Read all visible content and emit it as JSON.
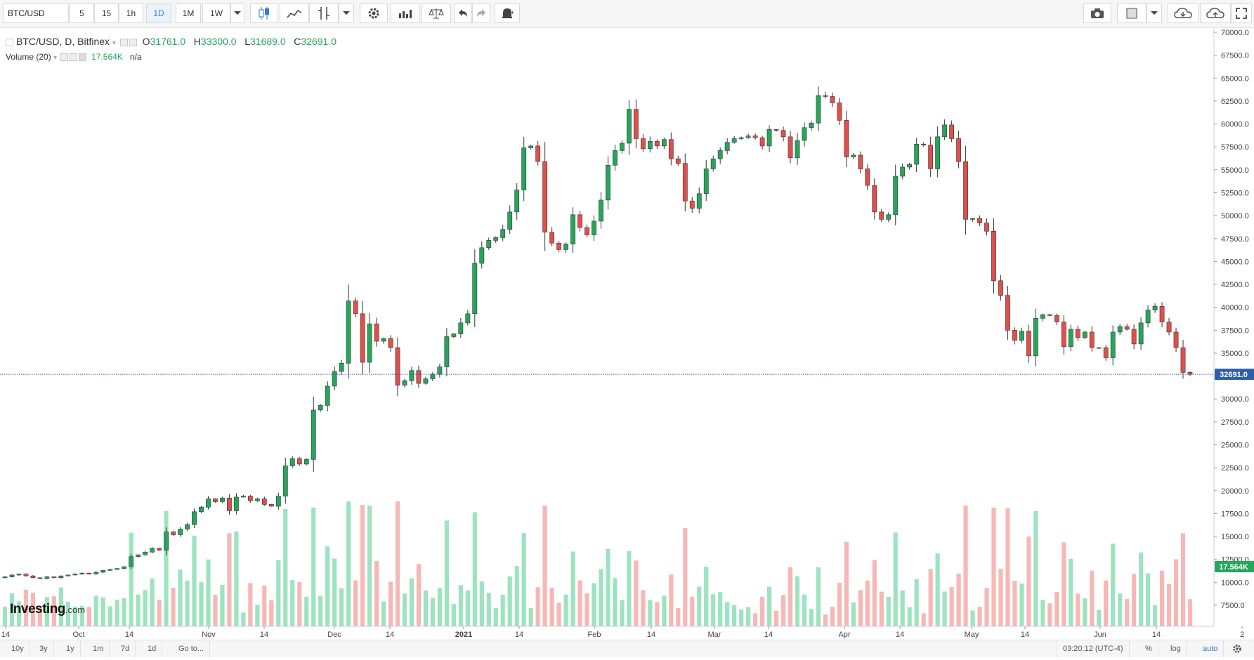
{
  "toolbar": {
    "symbol": "BTC/USD",
    "intervals": [
      "5",
      "15",
      "1h",
      "1D",
      "1M",
      "1W"
    ],
    "active_interval": "1D",
    "icons": [
      "candles-icon",
      "indicators-icon",
      "drawing-tools-icon",
      "settings-icon",
      "compare-icon",
      "balance-icon",
      "undo-icon",
      "redo-icon",
      "alert-icon"
    ],
    "right_icons": [
      "camera-icon",
      "chart-template-icon",
      "cloud-download-icon",
      "cloud-upload-icon",
      "fullscreen-icon"
    ]
  },
  "legend": {
    "title": "BTC/USD, D, Bitfinex",
    "open_label": "O",
    "open": "31761.0",
    "high_label": "H",
    "high": "33300.0",
    "low_label": "L",
    "low": "31689.0",
    "close_label": "C",
    "close": "32691.0",
    "volume_title": "Volume (20)",
    "volume_value": "17.564K",
    "volume_na": "n/a"
  },
  "logo": {
    "brand": "Investing",
    "suffix": ".com"
  },
  "price_label": "32691.0",
  "volume_label": "17.564K",
  "bottombar": {
    "ranges": [
      "10y",
      "3y",
      "1y",
      "1m",
      "7d",
      "1d"
    ],
    "goto": "Go to...",
    "time": "03:20:12 (UTC-4)",
    "percent": "%",
    "log": "log",
    "auto": "auto"
  },
  "colors": {
    "up": "#26a65b",
    "down": "#e0504a",
    "up_vol": "#9ee3c0",
    "down_vol": "#f7b8b5",
    "price_line": "#2f5fa8"
  },
  "chart_data": {
    "type": "candlestick",
    "title": "BTC/USD, D, Bitfinex",
    "x_ticks": [
      "14",
      "Oct",
      "14",
      "Nov",
      "14",
      "Dec",
      "14",
      "2021",
      "14",
      "Feb",
      "14",
      "Mar",
      "14",
      "Apr",
      "14",
      "May",
      "14",
      "Jun",
      "14",
      "2"
    ],
    "y_ticks": [
      "7500.0",
      "10000.0",
      "12500.0",
      "15000.0",
      "17500.0",
      "20000.0",
      "22500.0",
      "25000.0",
      "27500.0",
      "30000.0",
      "32500.0",
      "35000.0",
      "37500.0",
      "40000.0",
      "42500.0",
      "45000.0",
      "47500.0",
      "50000.0",
      "52500.0",
      "55000.0",
      "57500.0",
      "60000.0",
      "62500.0",
      "65000.0",
      "67500.0",
      "70000.0"
    ],
    "ylim": [
      6000,
      71000
    ],
    "last_close": 32691.0,
    "close_series": [
      10600,
      10800,
      10900,
      10700,
      10500,
      10400,
      10600,
      10500,
      10700,
      10800,
      10900,
      11000,
      10900,
      11100,
      11300,
      11400,
      11500,
      11700,
      12800,
      13000,
      13300,
      13700,
      13500,
      15500,
      15200,
      15800,
      16300,
      17700,
      18200,
      19100,
      18800,
      19200,
      17800,
      19300,
      19400,
      18900,
      19100,
      18500,
      18300,
      19400,
      22700,
      23500,
      22900,
      23400,
      28800,
      29300,
      31400,
      33000,
      33900,
      40700,
      39300,
      34000,
      38200,
      36300,
      36600,
      35600,
      31500,
      32000,
      33100,
      31700,
      32200,
      32700,
      33500,
      36800,
      37100,
      38300,
      39300,
      44800,
      46500,
      47300,
      47600,
      48500,
      50400,
      52800,
      57400,
      57600,
      55900,
      48200,
      47000,
      46300,
      46900,
      50100,
      48700,
      47900,
      49400,
      51700,
      55500,
      57100,
      57900,
      61600,
      58400,
      57300,
      58100,
      57600,
      58300,
      56200,
      55700,
      51600,
      50800,
      52400,
      55100,
      56200,
      57100,
      58000,
      58400,
      58500,
      58700,
      58500,
      57600,
      59400,
      59300,
      58600,
      56300,
      58200,
      59600,
      60100,
      63100,
      63000,
      62300,
      60400,
      56400,
      56600,
      55100,
      53300,
      50400,
      49600,
      50100,
      54300,
      55300,
      55600,
      57800,
      57700,
      55100,
      58600,
      59900,
      58400,
      55900,
      49600,
      49700,
      49200,
      48300,
      42900,
      41300,
      37500,
      36400,
      37400,
      34700,
      38800,
      39200,
      39100,
      38400,
      35700,
      37600,
      36700,
      37300,
      35600,
      35600,
      34500,
      37300,
      37900,
      37600,
      36000,
      38300,
      39700,
      40100,
      38400,
      37300,
      35600,
      32900,
      32691
    ]
  }
}
